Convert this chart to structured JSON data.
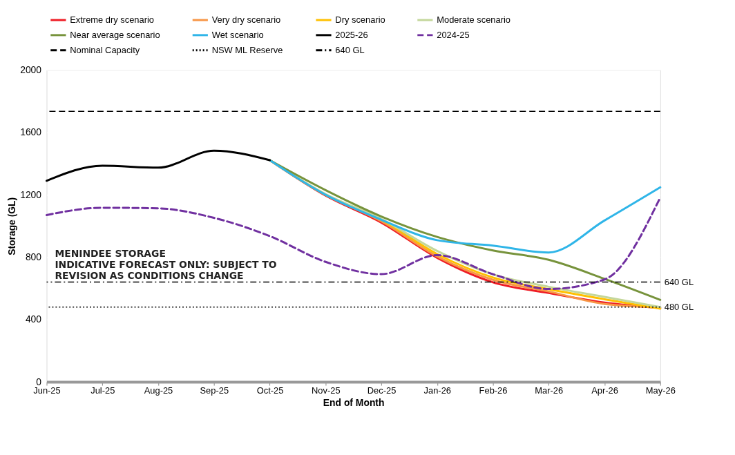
{
  "chart_data": {
    "type": "line",
    "categories": [
      "Jun-25",
      "Jul-25",
      "Aug-25",
      "Sep-25",
      "Oct-25",
      "Nov-25",
      "Dec-25",
      "Jan-26",
      "Feb-26",
      "Mar-26",
      "Apr-26",
      "May-26"
    ],
    "series": [
      {
        "name": "Extreme dry scenario",
        "color": "#ee1c25",
        "values": [
          null,
          null,
          null,
          null,
          1422,
          1195,
          1022,
          796,
          639,
          570,
          509,
          474
        ]
      },
      {
        "name": "Very dry scenario",
        "color": "#f79646",
        "values": [
          null,
          null,
          null,
          null,
          1422,
          1200,
          1030,
          805,
          655,
          580,
          500,
          478
        ]
      },
      {
        "name": "Dry scenario",
        "color": "#ffc000",
        "values": [
          null,
          null,
          null,
          null,
          1422,
          1200,
          1040,
          820,
          670,
          595,
          530,
          470
        ]
      },
      {
        "name": "Moderate scenario",
        "color": "#c4d79b",
        "values": [
          null,
          null,
          null,
          null,
          1422,
          1205,
          1045,
          840,
          690,
          610,
          545,
          480
        ]
      },
      {
        "name": "Near average scenario",
        "color": "#77933c",
        "values": [
          null,
          null,
          null,
          null,
          1422,
          1230,
          1061,
          930,
          843,
          783,
          661,
          526
        ]
      },
      {
        "name": "Wet scenario",
        "color": "#2fb5e8",
        "values": [
          null,
          null,
          null,
          null,
          1422,
          1200,
          1040,
          909,
          874,
          830,
          1035,
          1248
        ]
      },
      {
        "name": "2025-26",
        "color": "#000000",
        "values": [
          1290,
          1387,
          1374,
          1483,
          1422,
          null,
          null,
          null,
          null,
          null,
          null,
          null
        ]
      },
      {
        "name": "2024-25",
        "color": "#7030a0",
        "line_style": "dashed",
        "values": [
          1070,
          1117,
          1113,
          1052,
          935,
          770,
          691,
          813,
          691,
          596,
          657,
          1183
        ]
      }
    ],
    "ref_lines": [
      {
        "axis": "y",
        "value": 1735,
        "label": "Nominal Capacity",
        "color": "#000000",
        "line_style": "dashed"
      },
      {
        "axis": "y",
        "value": 480,
        "label": "NSW ML Reserve",
        "color": "#000000",
        "line_style": "dotted"
      },
      {
        "axis": "y",
        "value": 640,
        "label": "640 GL",
        "color": "#000000",
        "line_style": "dashdot"
      }
    ],
    "annotations": [
      "MENINDEE STORAGE",
      "INDICATIVE FORECAST ONLY: SUBJECT TO",
      "REVISION AS CONDITIONS CHANGE",
      {
        "text": "640 GL",
        "x": "May-26",
        "y": 640
      },
      {
        "text": "480 GL",
        "x": "May-26",
        "y": 480
      }
    ],
    "xlabel": "End of Month",
    "ylabel": "Storage (GL)",
    "ylim": [
      0,
      2000
    ],
    "yticks": [
      0,
      400,
      800,
      1200,
      1600,
      2000
    ],
    "grid": "y",
    "legend": "top",
    "line_style": "solid"
  }
}
